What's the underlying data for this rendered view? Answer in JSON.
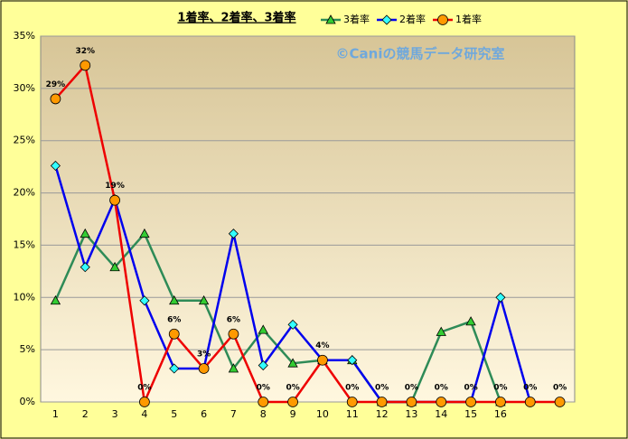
{
  "chart_data": {
    "type": "line",
    "title": "1着率、2着率、3着率",
    "watermark": "©Caniの競馬データ研究室",
    "categories": [
      "1",
      "2",
      "3",
      "4",
      "5",
      "6",
      "7",
      "8",
      "9",
      "10",
      "11",
      "12",
      "13",
      "14",
      "15",
      "16",
      null,
      null
    ],
    "ylim": [
      0,
      35
    ],
    "yticks": [
      {
        "value": 0,
        "label": "0%"
      },
      {
        "value": 5,
        "label": "5%"
      },
      {
        "value": 10,
        "label": "10%"
      },
      {
        "value": 15,
        "label": "15%"
      },
      {
        "value": 20,
        "label": "20%"
      },
      {
        "value": 25,
        "label": "25%"
      },
      {
        "value": 30,
        "label": "30%"
      },
      {
        "value": 35,
        "label": "35%"
      }
    ],
    "grid": true,
    "series": [
      {
        "name": "3着率",
        "color": "#2e8b57",
        "marker": "triangle",
        "marker_color": "#33cc33",
        "values": [
          9.7,
          16.1,
          12.9,
          16.1,
          9.7,
          9.7,
          3.2,
          6.9,
          3.7,
          4.0,
          4.0,
          0,
          0,
          6.7,
          7.7,
          0,
          null,
          null
        ]
      },
      {
        "name": "2着率",
        "color": "#0000ee",
        "marker": "diamond",
        "marker_color": "#33ffff",
        "values": [
          22.6,
          12.9,
          19.4,
          9.7,
          3.2,
          3.2,
          16.1,
          3.5,
          7.4,
          4.0,
          4.0,
          0,
          0,
          0,
          0,
          10.0,
          0,
          null
        ]
      },
      {
        "name": "1着率",
        "color": "#ee0000",
        "marker": "circle",
        "marker_color": "#ff9900",
        "values": [
          29.0,
          32.2,
          19.3,
          0,
          6.5,
          3.2,
          6.5,
          0,
          0,
          4.0,
          0,
          0,
          0,
          0,
          0,
          0,
          0,
          0
        ],
        "value_labels": [
          "29%",
          "32%",
          "19%",
          "0%",
          "6%",
          "3%",
          "6%",
          "0%",
          "0%",
          "4%",
          "0%",
          "0%",
          "0%",
          "0%",
          "0%",
          "0%",
          "0%",
          "0%"
        ]
      }
    ]
  }
}
